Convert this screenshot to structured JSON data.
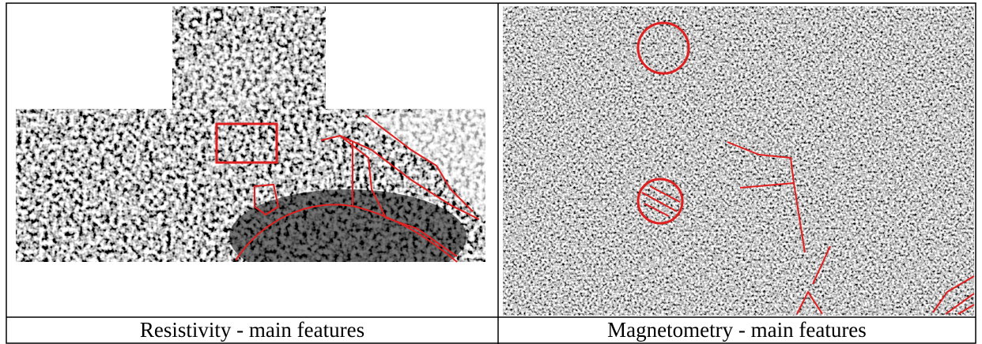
{
  "panels": [
    {
      "caption": "Resistivity - main features"
    },
    {
      "caption": "Magnetometry - main features"
    }
  ]
}
